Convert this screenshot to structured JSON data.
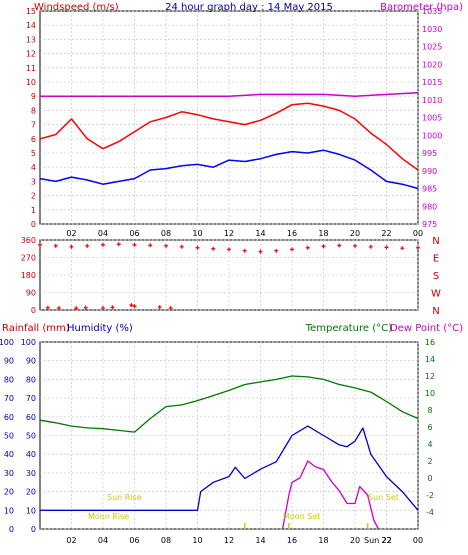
{
  "header": {
    "windspeed_label": "Windspeed (m/s)",
    "title": "24 hour graph day : 14 May 2015",
    "barometer_label": "Barometer (hpa)"
  },
  "lower_header": {
    "rainfall_label": "Rainfall (mm)",
    "humidity_label": "Humidity (%)",
    "temperature_label": "Temperature (°C)",
    "dewpoint_label": "Dew Point (°C)"
  },
  "annotations": {
    "sun_rise": "Sun Rise",
    "sun_set": "Sun Set",
    "moon_rise": "Moon Rise",
    "moon_set": "Moon Set",
    "sunset_time": "Sun 22"
  },
  "colors": {
    "wind_avg": "#0000ff",
    "wind_gust": "#ff0000",
    "barometer": "#cc00cc",
    "direction": "#ff0000",
    "humidity": "#0000cc",
    "temperature": "#007700",
    "dewpoint": "#cc00cc",
    "sun_moon": "#cccc00",
    "grid": "#c0c0c0"
  },
  "chart_data": [
    {
      "type": "line",
      "name": "wind-barometer",
      "x_ticks": [
        "02",
        "04",
        "06",
        "08",
        "10",
        "12",
        "14",
        "16",
        "18",
        "20",
        "22",
        "00"
      ],
      "left_axis": {
        "label": "Windspeed (m/s)",
        "range": [
          0,
          15
        ],
        "ticks": [
          0,
          1,
          2,
          3,
          4,
          5,
          6,
          7,
          8,
          9,
          10,
          11,
          12,
          13,
          14,
          15
        ]
      },
      "right_axis": {
        "label": "Barometer (hpa)",
        "range": [
          975,
          1035
        ],
        "ticks": [
          975,
          980,
          985,
          990,
          995,
          1000,
          1005,
          1010,
          1015,
          1020,
          1025,
          1030,
          1035
        ]
      },
      "series": [
        {
          "name": "Windspeed",
          "axis": "left",
          "x": [
            0,
            1,
            2,
            3,
            4,
            5,
            6,
            7,
            8,
            9,
            10,
            11,
            12,
            13,
            14,
            15,
            16,
            17,
            18,
            19,
            20,
            21,
            22,
            23,
            24
          ],
          "values": [
            3.2,
            3.0,
            3.3,
            3.1,
            2.8,
            3.0,
            3.2,
            3.8,
            3.9,
            4.1,
            4.2,
            4.0,
            4.5,
            4.4,
            4.6,
            4.9,
            5.1,
            5.0,
            5.2,
            4.9,
            4.5,
            3.8,
            3.0,
            2.8,
            2.5
          ]
        },
        {
          "name": "Gust",
          "axis": "left",
          "x": [
            0,
            1,
            2,
            3,
            4,
            5,
            6,
            7,
            8,
            9,
            10,
            11,
            12,
            13,
            14,
            15,
            16,
            17,
            18,
            19,
            20,
            21,
            22,
            23,
            24
          ],
          "values": [
            6.0,
            6.3,
            7.4,
            6.0,
            5.3,
            5.8,
            6.5,
            7.2,
            7.5,
            7.9,
            7.7,
            7.4,
            7.2,
            7.0,
            7.3,
            7.8,
            8.4,
            8.5,
            8.3,
            8.0,
            7.4,
            6.4,
            5.6,
            4.6,
            3.8
          ]
        },
        {
          "name": "Barometer",
          "axis": "right",
          "x": [
            0,
            2,
            4,
            6,
            8,
            10,
            12,
            14,
            16,
            18,
            20,
            22,
            24
          ],
          "values": [
            1011,
            1011,
            1011,
            1011,
            1011,
            1011,
            1011,
            1011.5,
            1011.5,
            1011.5,
            1011,
            1011.5,
            1012
          ]
        }
      ]
    },
    {
      "type": "scatter",
      "name": "wind-direction",
      "x_ticks": [
        "02",
        "04",
        "06",
        "08",
        "10",
        "12",
        "14",
        "16",
        "18",
        "20",
        "22",
        "00"
      ],
      "y_axis": {
        "range": [
          0,
          360
        ],
        "ticks": [
          0,
          90,
          180,
          270,
          360
        ],
        "direction_labels": [
          "N",
          "W",
          "S",
          "E",
          "N"
        ]
      },
      "series": [
        {
          "name": "Direction",
          "x": [
            0,
            1,
            2,
            3,
            4,
            5,
            6,
            7,
            8,
            9,
            10,
            11,
            12,
            13,
            14,
            15,
            16,
            17,
            18,
            19,
            20,
            21,
            22,
            23,
            24
          ],
          "values": [
            335,
            330,
            325,
            330,
            335,
            338,
            335,
            333,
            330,
            325,
            320,
            315,
            312,
            305,
            300,
            305,
            312,
            320,
            328,
            332,
            330,
            325,
            322,
            318,
            320
          ]
        },
        {
          "name": "Direction near N",
          "x": [
            0.5,
            1.2,
            2.3,
            2.9,
            4.0,
            4.6,
            5.8,
            6.0,
            7.6,
            8.3
          ],
          "values": [
            12,
            10,
            9,
            12,
            10,
            14,
            25,
            20,
            15,
            10
          ]
        }
      ]
    },
    {
      "type": "line",
      "name": "rain-humidity-temperature",
      "x_ticks": [
        "02",
        "04",
        "06",
        "08",
        "10",
        "12",
        "14",
        "16",
        "18",
        "20",
        "22",
        "00"
      ],
      "left_axis": {
        "label": "Rainfall (mm)",
        "range": [
          0,
          100
        ],
        "ticks": [
          0,
          10,
          20,
          30,
          40,
          50,
          60,
          70,
          80,
          90,
          100
        ]
      },
      "humidity_axis": {
        "label": "Humidity (%)",
        "range": [
          0,
          100
        ],
        "ticks": [
          0,
          10,
          20,
          30,
          40,
          50,
          60,
          70,
          80,
          90,
          100
        ]
      },
      "right_axis": {
        "label": "Temperature (°C)",
        "range": [
          -6,
          16
        ],
        "ticks": [
          -4,
          -2,
          0,
          2,
          4,
          6,
          8,
          10,
          12,
          14,
          16
        ]
      },
      "series": [
        {
          "name": "Humidity",
          "axis": "humidity",
          "x": [
            0,
            2,
            4,
            6,
            8,
            10,
            10.2,
            11,
            12,
            12.4,
            13,
            14,
            15,
            16,
            17,
            18,
            19,
            19.5,
            20,
            20.5,
            21,
            22,
            23,
            24
          ],
          "values": [
            10,
            10,
            10,
            10,
            10,
            10,
            20,
            25,
            28,
            33,
            27,
            32,
            36,
            50,
            55,
            50,
            45,
            44,
            47,
            54,
            40,
            28,
            20,
            10
          ]
        },
        {
          "name": "Temperature",
          "axis": "right",
          "x": [
            0,
            1,
            2,
            3,
            4,
            5,
            6,
            7,
            8,
            9,
            10,
            11,
            12,
            13,
            14,
            15,
            16,
            17,
            18,
            19,
            20,
            21,
            22,
            23,
            24
          ],
          "values": [
            6.8,
            6.5,
            6.1,
            5.9,
            5.8,
            5.6,
            5.4,
            7.0,
            8.4,
            8.6,
            9.1,
            9.7,
            10.3,
            11.0,
            11.3,
            11.6,
            12.0,
            11.9,
            11.6,
            11.0,
            10.6,
            10.1,
            9.0,
            7.8,
            7.0
          ]
        },
        {
          "name": "Dew Point",
          "axis": "right",
          "x": [
            15.4,
            15.8,
            16,
            16.5,
            17,
            17.5,
            18,
            18.5,
            19,
            19.5,
            20,
            20.3,
            20.8,
            21.2,
            21.5
          ],
          "values": [
            -6,
            -2,
            -0.5,
            0,
            2,
            1.3,
            1.0,
            -0.4,
            -1.5,
            -3,
            -3,
            -1,
            -2,
            -5,
            -6
          ]
        }
      ]
    }
  ]
}
